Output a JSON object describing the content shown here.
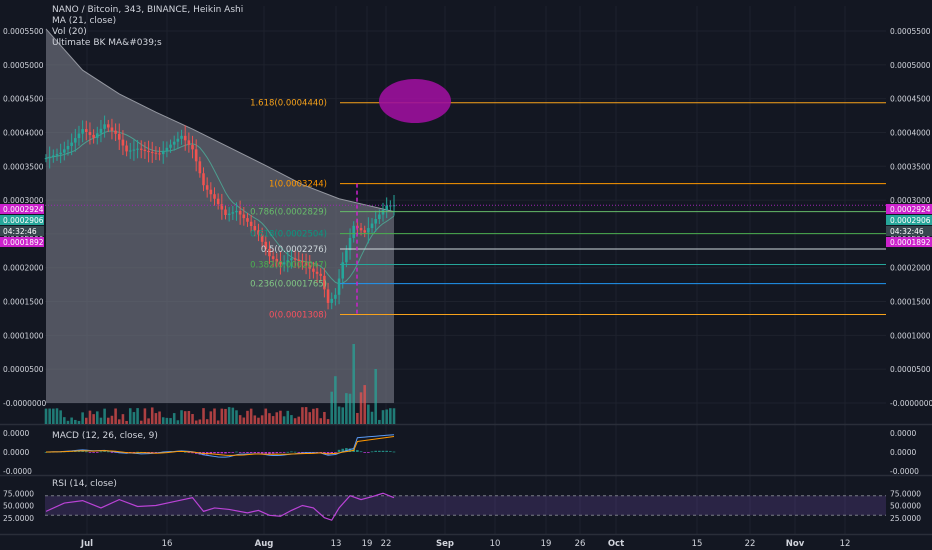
{
  "legend": {
    "title": "NANO / Bitcoin, 343, BINANCE, Heikin Ashi",
    "ma": "MA (21, close)",
    "vol": "Vol (20)",
    "custom": "Ultimate BK MA&#039;s"
  },
  "colors": {
    "background": "#131722",
    "grid": "#1e222d",
    "up": "#26a69a",
    "down": "#ef5350",
    "price_line": "#9c27b0",
    "badge_magenta": "#cc22cc",
    "text": "#d1d4dc",
    "macd_line": "#5b9cf6",
    "signal_line": "#ff9800",
    "rsi_line": "#ba43d6",
    "fib_0": "#f7525f",
    "fib_236": "#81c784",
    "fib_382": "#4caf50",
    "fib_5": "#cfd8dc",
    "fib_618": "#089981",
    "fib_786": "#66bb6a",
    "fib_1": "#ff9800",
    "fib_1618": "#f7a21b"
  },
  "price_axis": {
    "ticks": [
      "0.0005500",
      "0.0005000",
      "0.0004500",
      "0.0004000",
      "0.0003500",
      "0.0003000",
      "0.0002500",
      "0.0002000",
      "0.0001500",
      "0.0001000",
      "0.0000500",
      "-0.0000000"
    ],
    "badges": [
      "0.0002924",
      "0.0002906",
      "04:32:46",
      "0.0001892"
    ]
  },
  "macd": {
    "title": "MACD (12, 26, close, 9)",
    "ticks": [
      "0.0000",
      "0.0000",
      "-0.0000"
    ]
  },
  "rsi": {
    "title": "RSI (14, close)",
    "ticks": [
      "75.0000",
      "50.0000",
      "25.0000"
    ]
  },
  "time_axis": {
    "labels": [
      "Jul",
      "16",
      "Aug",
      "13",
      "19",
      "22",
      "Sep",
      "10",
      "19",
      "26",
      "Oct",
      "15",
      "22",
      "Nov",
      "12"
    ]
  },
  "chart_data": {
    "type": "candlestick",
    "title": "NANO / Bitcoin, 343, BINANCE, Heikin Ashi",
    "symbol": "NANO / Bitcoin",
    "interval": "343",
    "exchange": "BINANCE",
    "chart_style": "Heikin Ashi",
    "indicators": [
      "MA (21, close)",
      "Vol (20)",
      "Ultimate BK MA&#039;s",
      "MACD (12, 26, close, 9)",
      "RSI (14, close)"
    ],
    "ylim": [
      -0.0,
      0.00055
    ],
    "last_price": 0.0002924,
    "fibonacci_levels": [
      {
        "label": "1.618(0.0004440)",
        "value": 0.000444
      },
      {
        "label": "1(0.0003244)",
        "value": 0.0003244
      },
      {
        "label": "0.786(0.0002829)",
        "value": 0.0002829
      },
      {
        "label": "0.618(0.0002504)",
        "value": 0.0002504
      },
      {
        "label": "0.5(0.0002276)",
        "value": 0.0002276
      },
      {
        "label": "0.382(0.0002047)",
        "value": 0.0002047
      },
      {
        "label": "0.236(0.0001765)",
        "value": 0.0001765
      },
      {
        "label": "0(0.0001308)",
        "value": 0.0001308
      }
    ],
    "price_path": [
      [
        0,
        0.000362
      ],
      [
        4,
        0.00037
      ],
      [
        7,
        0.000385
      ],
      [
        10,
        0.000405
      ],
      [
        13,
        0.000392
      ],
      [
        16,
        0.000412
      ],
      [
        19,
        0.000398
      ],
      [
        22,
        0.000372
      ],
      [
        25,
        0.000376
      ],
      [
        28,
        0.000371
      ],
      [
        31,
        0.000368
      ],
      [
        34,
        0.000382
      ],
      [
        37,
        0.000395
      ],
      [
        40,
        0.000375
      ],
      [
        43,
        0.000322
      ],
      [
        46,
        0.000302
      ],
      [
        49,
        0.000278
      ],
      [
        52,
        0.000284
      ],
      [
        55,
        0.000268
      ],
      [
        58,
        0.000249
      ],
      [
        61,
        0.000217
      ],
      [
        64,
        0.000205
      ],
      [
        67,
        0.000214
      ],
      [
        70,
        0.000208
      ],
      [
        73,
        0.000194
      ],
      [
        75,
        0.000188
      ],
      [
        77,
        0.000148
      ],
      [
        79,
        0.00016
      ],
      [
        81,
        0.000208
      ],
      [
        84,
        0.000262
      ],
      [
        87,
        0.000252
      ],
      [
        90,
        0.000272
      ],
      [
        93,
        0.000292
      ],
      [
        95,
        0.0002924
      ]
    ],
    "upper_band": [
      [
        0,
        0.000553
      ],
      [
        10,
        0.000492
      ],
      [
        20,
        0.000457
      ],
      [
        30,
        0.00043
      ],
      [
        40,
        0.000405
      ],
      [
        50,
        0.000378
      ],
      [
        60,
        0.000351
      ],
      [
        70,
        0.000323
      ],
      [
        80,
        0.000302
      ],
      [
        95,
        0.000283
      ]
    ],
    "rsi_guides": [
      70,
      30
    ],
    "rsi_path": [
      [
        0,
        38
      ],
      [
        5,
        55
      ],
      [
        10,
        60
      ],
      [
        15,
        45
      ],
      [
        20,
        62
      ],
      [
        25,
        48
      ],
      [
        30,
        50
      ],
      [
        35,
        58
      ],
      [
        40,
        66
      ],
      [
        43,
        38
      ],
      [
        46,
        45
      ],
      [
        50,
        42
      ],
      [
        55,
        35
      ],
      [
        58,
        40
      ],
      [
        61,
        30
      ],
      [
        64,
        28
      ],
      [
        67,
        40
      ],
      [
        70,
        50
      ],
      [
        73,
        45
      ],
      [
        76,
        25
      ],
      [
        78,
        20
      ],
      [
        80,
        45
      ],
      [
        83,
        70
      ],
      [
        86,
        62
      ],
      [
        89,
        68
      ],
      [
        92,
        75
      ],
      [
        95,
        66
      ]
    ],
    "volume_hint": "volume bars along the bottom of the price pane, spike near 19 Aug"
  }
}
